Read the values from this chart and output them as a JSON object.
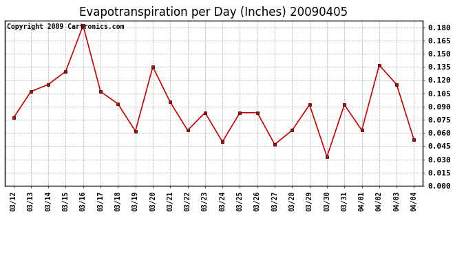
{
  "title": "Evapotranspiration per Day (Inches) 20090405",
  "copyright_text": "Copyright 2009 Cartronics.com",
  "x_labels": [
    "03/12",
    "03/13",
    "03/14",
    "03/15",
    "03/16",
    "03/17",
    "03/18",
    "03/19",
    "03/20",
    "03/21",
    "03/22",
    "03/23",
    "03/24",
    "03/25",
    "03/26",
    "03/27",
    "03/28",
    "03/29",
    "03/30",
    "03/31",
    "04/01",
    "04/02",
    "04/03",
    "04/04"
  ],
  "y_values": [
    0.077,
    0.107,
    0.115,
    0.13,
    0.182,
    0.107,
    0.093,
    0.062,
    0.135,
    0.095,
    0.063,
    0.083,
    0.05,
    0.083,
    0.083,
    0.047,
    0.063,
    0.092,
    0.033,
    0.092,
    0.063,
    0.137,
    0.115,
    0.052
  ],
  "line_color": "#cc0000",
  "marker": "s",
  "marker_size": 3,
  "ylim": [
    0.0,
    0.1875
  ],
  "ytick_min": 0.0,
  "ytick_max": 0.181,
  "ytick_step": 0.015,
  "background_color": "#ffffff",
  "grid_color": "#bbbbbb",
  "title_fontsize": 12,
  "copyright_fontsize": 7
}
